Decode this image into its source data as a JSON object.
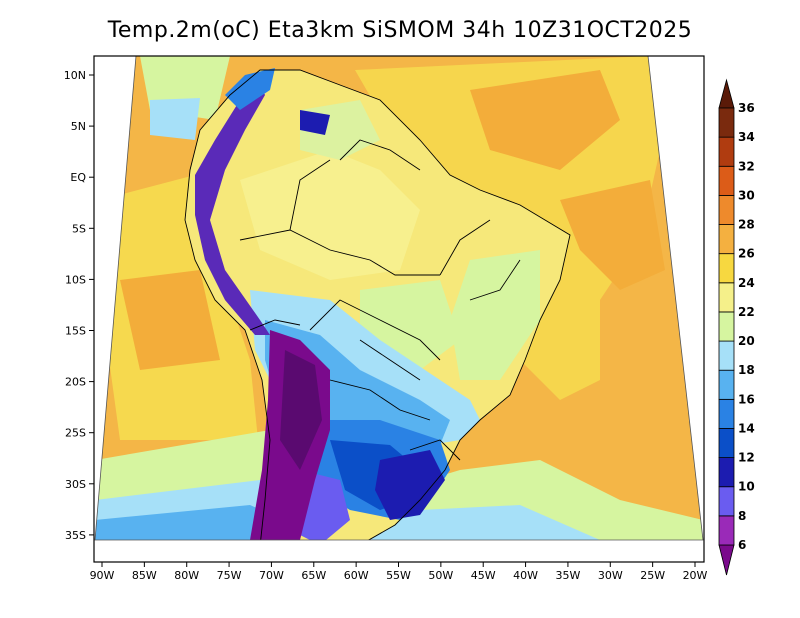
{
  "title": "Temp.2m(oC) Eta3km SiSMOM 34h 10Z31OCT2025",
  "map": {
    "lon_labels": [
      "90W",
      "85W",
      "80W",
      "75W",
      "70W",
      "65W",
      "60W",
      "55W",
      "50W",
      "45W",
      "40W",
      "35W",
      "30W",
      "25W",
      "20W"
    ],
    "lat_labels": [
      "10N",
      "5N",
      "EQ",
      "5S",
      "10S",
      "15S",
      "20S",
      "25S",
      "30S",
      "35S"
    ]
  },
  "colorbar": {
    "labels": [
      "6",
      "8",
      "10",
      "12",
      "14",
      "16",
      "18",
      "20",
      "22",
      "24",
      "26",
      "28",
      "30",
      "32",
      "34",
      "36"
    ],
    "colors": [
      "#7a0a8c",
      "#9a2ab8",
      "#6a5cf0",
      "#1c1cb0",
      "#0b4fc8",
      "#2a82e4",
      "#58b2f0",
      "#a6e0f8",
      "#d6f5a0",
      "#f5f08a",
      "#f7d840",
      "#f4b040",
      "#ee8a2c",
      "#dc5c18",
      "#b03c10",
      "#7a2a0e",
      "#5a1a08"
    ]
  }
}
